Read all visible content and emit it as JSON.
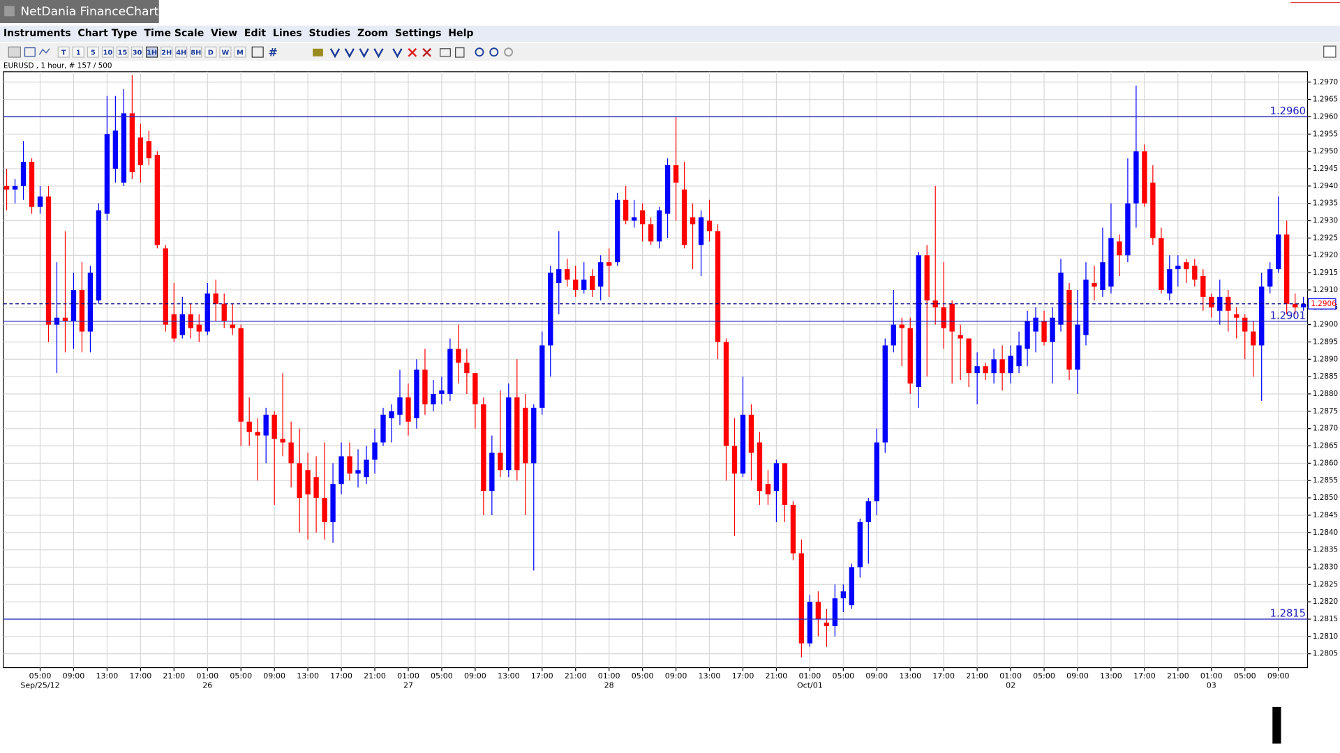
{
  "window": {
    "title": "NetDania FinanceChart"
  },
  "menu": [
    "Instruments",
    "Chart Type",
    "Time Scale",
    "View",
    "Edit",
    "Lines",
    "Studies",
    "Zoom",
    "Settings",
    "Help"
  ],
  "toolbar": [
    "T",
    "1",
    "5",
    "10",
    "15",
    "30",
    "1H",
    "2H",
    "4H",
    "8H",
    "D",
    "W",
    "M"
  ],
  "chart_data": {
    "type": "candlestick",
    "subtitle": "EURUSD , 1 hour, # 157 / 500",
    "up_color": "#0000ff",
    "down_color": "#ff0000",
    "grid": true,
    "level_color": "#2020c0",
    "categories": [
      null,
      null,
      null,
      null,
      "05:00",
      null,
      null,
      null,
      "09:00",
      null,
      null,
      null,
      "13:00",
      null,
      null,
      null,
      "17:00",
      null,
      null,
      null,
      "21:00",
      null,
      null,
      null,
      "01:00",
      null,
      null,
      null,
      "05:00",
      null,
      null,
      null,
      "09:00",
      null,
      null,
      null,
      "13:00",
      null,
      null,
      null,
      "17:00",
      null,
      null,
      null,
      "21:00",
      null,
      null,
      null,
      "01:00",
      null,
      null,
      null,
      "05:00",
      null,
      null,
      null,
      "09:00",
      null,
      null,
      null,
      "13:00",
      null,
      null,
      null,
      "17:00",
      null,
      null,
      null,
      "21:00",
      null,
      null,
      null,
      "01:00",
      null,
      null,
      null,
      "05:00",
      null,
      null,
      null,
      "09:00",
      null,
      null,
      null,
      "13:00",
      null,
      null,
      null,
      "17:00",
      null,
      null,
      null,
      "21:00",
      null,
      null,
      null,
      "01:00",
      null,
      null,
      null,
      "05:00",
      null,
      null,
      null,
      "09:00",
      null,
      null,
      null,
      "13:00",
      null,
      null,
      null,
      "17:00",
      null,
      null,
      null,
      "21:00",
      null,
      null,
      null,
      "01:00",
      null,
      null,
      null,
      "05:00",
      null,
      null,
      null,
      "09:00",
      null,
      null,
      null,
      "13:00",
      null,
      null,
      null,
      "17:00",
      null,
      null,
      null,
      "21:00",
      null,
      null,
      null,
      "01:00",
      null,
      null,
      null,
      "05:00",
      null,
      null,
      null,
      "09:00",
      null,
      null,
      null
    ],
    "dates": [
      null,
      null,
      null,
      null,
      "Sep/25/12",
      null,
      null,
      null,
      null,
      null,
      null,
      null,
      null,
      null,
      null,
      null,
      null,
      null,
      null,
      null,
      null,
      null,
      null,
      null,
      "26",
      null,
      null,
      null,
      null,
      null,
      null,
      null,
      null,
      null,
      null,
      null,
      null,
      null,
      null,
      null,
      null,
      null,
      null,
      null,
      null,
      null,
      null,
      null,
      "27",
      null,
      null,
      null,
      null,
      null,
      null,
      null,
      null,
      null,
      null,
      null,
      null,
      null,
      null,
      null,
      null,
      null,
      null,
      null,
      null,
      null,
      null,
      null,
      "28",
      null,
      null,
      null,
      null,
      null,
      null,
      null,
      null,
      null,
      null,
      null,
      null,
      null,
      null,
      null,
      null,
      null,
      null,
      null,
      null,
      null,
      null,
      null,
      "Oct/01",
      null,
      null,
      null,
      null,
      null,
      null,
      null,
      null,
      null,
      null,
      null,
      null,
      null,
      null,
      null,
      null,
      null,
      null,
      null,
      null,
      null,
      null,
      null,
      "02",
      null,
      null,
      null,
      null,
      null,
      null,
      null,
      null,
      null,
      null,
      null,
      null,
      null,
      null,
      null,
      null,
      null,
      null,
      null,
      null,
      null,
      null,
      null,
      "03",
      null,
      null,
      null,
      null,
      null,
      null,
      null,
      null,
      null,
      null,
      null
    ],
    "open": [
      1.294,
      1.2939,
      1.294,
      1.2947,
      1.2934,
      1.2937,
      1.29,
      1.2902,
      1.2901,
      1.291,
      1.2898,
      1.2907,
      1.2932,
      1.2945,
      1.2941,
      1.2961,
      1.2954,
      1.2953,
      1.2949,
      1.2922,
      1.2903,
      1.2897,
      1.2903,
      1.29,
      1.2898,
      1.2909,
      1.2906,
      1.29,
      1.2899,
      1.2872,
      1.2869,
      1.2868,
      1.2874,
      1.2867,
      1.2866,
      1.286,
      1.2858,
      1.2856,
      1.285,
      1.2843,
      1.2854,
      1.2862,
      1.2857,
      1.2856,
      1.2861,
      1.2866,
      1.2873,
      1.2874,
      1.2879,
      1.2873,
      1.2887,
      1.2877,
      1.288,
      1.288,
      1.2893,
      1.2889,
      1.2886,
      1.2877,
      1.2852,
      1.2863,
      1.2858,
      1.2879,
      1.2876,
      1.286,
      1.2876,
      1.2894,
      1.2912,
      1.2916,
      1.2913,
      1.291,
      1.2914,
      1.2911,
      1.2918,
      1.2918,
      1.2936,
      1.293,
      1.2933,
      1.2929,
      1.2924,
      1.2932,
      1.2946,
      1.2939,
      1.2931,
      1.2923,
      1.293,
      1.2927,
      1.2895,
      1.2865,
      1.2857,
      1.2874,
      1.2866,
      1.2854,
      1.2852,
      1.286,
      1.2848,
      1.2834,
      1.2808,
      1.282,
      1.2814,
      1.2813,
      1.2821,
      1.2819,
      1.283,
      1.2843,
      1.2849,
      1.2866,
      1.2894,
      1.29,
      1.2899,
      1.2882,
      1.292,
      1.2907,
      1.2905,
      1.2906,
      1.2897,
      1.2896,
      1.2886,
      1.2888,
      1.2886,
      1.289,
      1.2886,
      1.2888,
      1.2893,
      1.2898,
      1.2901,
      1.2895,
      1.29,
      1.291,
      1.2887,
      1.2897,
      1.2912,
      1.291,
      1.2911,
      1.2924,
      1.292,
      1.2935,
      1.295,
      1.2941,
      1.2925,
      1.2909,
      1.2916,
      1.2918,
      1.2917,
      1.2914,
      1.2908,
      1.2904,
      1.2908,
      1.2903,
      1.2902,
      1.2898,
      1.2894,
      1.2911,
      1.2916,
      1.2926,
      1.2906,
      1.2905
    ],
    "high": [
      1.2945,
      1.2942,
      1.2953,
      1.2948,
      1.294,
      1.294,
      1.2918,
      1.2927,
      1.2915,
      1.2918,
      1.2917,
      1.2935,
      1.2966,
      1.2966,
      1.2968,
      1.2972,
      1.2958,
      1.2956,
      1.295,
      1.2923,
      1.2912,
      1.2908,
      1.2906,
      1.2903,
      1.2912,
      1.2913,
      1.2909,
      1.2906,
      1.29,
      1.2879,
      1.2873,
      1.2876,
      1.2875,
      1.2886,
      1.2872,
      1.287,
      1.2863,
      1.2862,
      1.2866,
      1.286,
      1.2866,
      1.2866,
      1.2864,
      1.2865,
      1.287,
      1.2876,
      1.2877,
      1.2887,
      1.2883,
      1.289,
      1.2893,
      1.2884,
      1.2885,
      1.2896,
      1.29,
      1.2893,
      1.2886,
      1.2879,
      1.2868,
      1.2881,
      1.2883,
      1.289,
      1.288,
      1.2877,
      1.2898,
      1.2917,
      1.2927,
      1.2919,
      1.2917,
      1.2918,
      1.2916,
      1.292,
      1.2922,
      1.2938,
      1.294,
      1.2936,
      1.2935,
      1.2931,
      1.2934,
      1.2948,
      1.296,
      1.2947,
      1.2935,
      1.2933,
      1.2936,
      1.2929,
      1.2896,
      1.2873,
      1.2885,
      1.2877,
      1.2869,
      1.2858,
      1.2861,
      1.286,
      1.2849,
      1.2838,
      1.2822,
      1.2823,
      1.2818,
      1.2825,
      1.2825,
      1.2831,
      1.2844,
      1.285,
      1.287,
      1.2896,
      1.291,
      1.2902,
      1.2902,
      1.2921,
      1.2923,
      1.294,
      1.2918,
      1.2907,
      1.29,
      1.2896,
      1.2892,
      1.2889,
      1.2893,
      1.2894,
      1.2894,
      1.2898,
      1.2904,
      1.2905,
      1.2904,
      1.2905,
      1.2919,
      1.2912,
      1.291,
      1.2918,
      1.2917,
      1.2928,
      1.2935,
      1.2926,
      1.2948,
      1.2969,
      1.2952,
      1.2946,
      1.2928,
      1.292,
      1.292,
      1.2919,
      1.2919,
      1.2916,
      1.2909,
      1.2913,
      1.291,
      1.2905,
      1.2903,
      1.2901,
      1.2915,
      1.2918,
      1.2937,
      1.293,
      1.2909,
      1.2908
    ],
    "low": [
      1.2933,
      1.2935,
      1.2936,
      1.2932,
      1.2932,
      1.2895,
      1.2886,
      1.2892,
      1.2893,
      1.2892,
      1.2892,
      1.2906,
      1.293,
      1.2941,
      1.294,
      1.2942,
      1.2941,
      1.2946,
      1.2922,
      1.2898,
      1.2895,
      1.2896,
      1.2896,
      1.2895,
      1.2897,
      1.2901,
      1.2899,
      1.2897,
      1.2865,
      1.2865,
      1.2855,
      1.286,
      1.2848,
      1.2862,
      1.2853,
      1.284,
      1.2838,
      1.284,
      1.2838,
      1.2837,
      1.2851,
      1.2855,
      1.2853,
      1.2854,
      1.2857,
      1.2865,
      1.2866,
      1.2871,
      1.2868,
      1.287,
      1.2874,
      1.2875,
      1.2877,
      1.2878,
      1.2883,
      1.288,
      1.287,
      1.2845,
      1.2845,
      1.2856,
      1.2856,
      1.2855,
      1.2845,
      1.2829,
      1.2874,
      1.2885,
      1.2903,
      1.2911,
      1.2908,
      1.2909,
      1.2908,
      1.2907,
      1.2908,
      1.2917,
      1.2929,
      1.2928,
      1.2924,
      1.2923,
      1.2922,
      1.2925,
      1.293,
      1.2922,
      1.2916,
      1.2914,
      1.2924,
      1.289,
      1.2855,
      1.2839,
      1.2856,
      1.2855,
      1.2848,
      1.2848,
      1.2843,
      1.2843,
      1.2832,
      1.2804,
      1.2807,
      1.281,
      1.2807,
      1.281,
      1.2817,
      1.2818,
      1.2827,
      1.2831,
      1.2845,
      1.2863,
      1.2892,
      1.2888,
      1.288,
      1.2876,
      1.2885,
      1.29,
      1.2893,
      1.2883,
      1.2884,
      1.2882,
      1.2877,
      1.2884,
      1.2883,
      1.2881,
      1.2883,
      1.2886,
      1.2888,
      1.2892,
      1.2894,
      1.2883,
      1.2898,
      1.2884,
      1.288,
      1.2894,
      1.2907,
      1.2908,
      1.2909,
      1.2914,
      1.2918,
      1.2928,
      1.2934,
      1.2923,
      1.2909,
      1.2907,
      1.2911,
      1.2912,
      1.2911,
      1.2904,
      1.2902,
      1.29,
      1.2898,
      1.2896,
      1.289,
      1.2885,
      1.2878,
      1.2909,
      1.2915,
      1.2903,
      1.2903,
      1.2904
    ],
    "close": [
      1.2939,
      1.294,
      1.2947,
      1.2934,
      1.2937,
      1.29,
      1.2902,
      1.2901,
      1.291,
      1.2898,
      1.2915,
      1.2933,
      1.2955,
      1.2956,
      1.2961,
      1.2944,
      1.2946,
      1.2948,
      1.2923,
      1.29,
      1.2896,
      1.2903,
      1.2899,
      1.2898,
      1.2909,
      1.2906,
      1.2901,
      1.2899,
      1.2872,
      1.2869,
      1.2868,
      1.2874,
      1.2867,
      1.2866,
      1.286,
      1.285,
      1.2851,
      1.285,
      1.2843,
      1.2854,
      1.2862,
      1.2857,
      1.2858,
      1.2861,
      1.2866,
      1.2874,
      1.2875,
      1.2879,
      1.2872,
      1.2887,
      1.2877,
      1.288,
      1.2881,
      1.2893,
      1.2889,
      1.2886,
      1.2877,
      1.2852,
      1.2863,
      1.2858,
      1.2879,
      1.2858,
      1.286,
      1.2876,
      1.2894,
      1.2915,
      1.2916,
      1.2913,
      1.291,
      1.2913,
      1.291,
      1.2918,
      1.2917,
      1.2936,
      1.293,
      1.2931,
      1.2929,
      1.2924,
      1.2933,
      1.2946,
      1.2941,
      1.2923,
      1.2929,
      1.2931,
      1.2927,
      1.2895,
      1.2865,
      1.2857,
      1.2874,
      1.2863,
      1.2852,
      1.2851,
      1.286,
      1.2848,
      1.2834,
      1.2808,
      1.282,
      1.2815,
      1.2813,
      1.2821,
      1.2823,
      1.283,
      1.2843,
      1.2849,
      1.2866,
      1.2894,
      1.29,
      1.2899,
      1.2883,
      1.292,
      1.2907,
      1.2905,
      1.2899,
      1.2898,
      1.2896,
      1.2886,
      1.2888,
      1.2886,
      1.289,
      1.2886,
      1.2891,
      1.2894,
      1.2901,
      1.2902,
      1.2895,
      1.2902,
      1.2915,
      1.2887,
      1.29,
      1.2913,
      1.2911,
      1.2918,
      1.2925,
      1.292,
      1.2935,
      1.295,
      1.2935,
      1.2925,
      1.291,
      1.2916,
      1.2917,
      1.2916,
      1.2913,
      1.2908,
      1.2905,
      1.2908,
      1.2904,
      1.2902,
      1.2898,
      1.2894,
      1.2911,
      1.2916,
      1.2926,
      1.2906,
      1.2905,
      1.2906
    ],
    "ylim": [
      1.2801,
      1.2973
    ],
    "yticks": [
      {
        "value": 1.2805,
        "label": "1.2805"
      },
      {
        "value": 1.281,
        "label": "1.2810"
      },
      {
        "value": 1.2815,
        "label": "1.2815"
      },
      {
        "value": 1.282,
        "label": "1.2820"
      },
      {
        "value": 1.2825,
        "label": "1.2825"
      },
      {
        "value": 1.283,
        "label": "1.2830"
      },
      {
        "value": 1.2835,
        "label": "1.2835"
      },
      {
        "value": 1.284,
        "label": "1.2840"
      },
      {
        "value": 1.2845,
        "label": "1.2845"
      },
      {
        "value": 1.285,
        "label": "1.2850"
      },
      {
        "value": 1.2855,
        "label": "1.2855"
      },
      {
        "value": 1.286,
        "label": "1.2860"
      },
      {
        "value": 1.2865,
        "label": "1.2865"
      },
      {
        "value": 1.287,
        "label": "1.2870"
      },
      {
        "value": 1.2875,
        "label": "1.2875"
      },
      {
        "value": 1.288,
        "label": "1.2880"
      },
      {
        "value": 1.2885,
        "label": "1.2885"
      },
      {
        "value": 1.289,
        "label": "1.2890"
      },
      {
        "value": 1.2895,
        "label": "1.2895"
      },
      {
        "value": 1.29,
        "label": "1.2900"
      },
      {
        "value": 1.2905,
        "label": "1.2905"
      },
      {
        "value": 1.291,
        "label": "1.2910"
      },
      {
        "value": 1.2915,
        "label": "1.2915"
      },
      {
        "value": 1.292,
        "label": "1.2920"
      },
      {
        "value": 1.2925,
        "label": "1.2925"
      },
      {
        "value": 1.293,
        "label": "1.2930"
      },
      {
        "value": 1.2935,
        "label": "1.2935"
      },
      {
        "value": 1.294,
        "label": "1.2940"
      },
      {
        "value": 1.2945,
        "label": "1.2945"
      },
      {
        "value": 1.295,
        "label": "1.2950"
      },
      {
        "value": 1.2955,
        "label": "1.2955"
      },
      {
        "value": 1.296,
        "label": "1.2960"
      },
      {
        "value": 1.2965,
        "label": "1.2965"
      },
      {
        "value": 1.297,
        "label": "1.2970"
      }
    ],
    "levels": [
      {
        "value": 1.296,
        "label": "1.2960"
      },
      {
        "value": 1.2901,
        "label": "1.2901"
      },
      {
        "value": 1.2815,
        "label": "1.2815"
      }
    ],
    "last_price": 1.2906
  }
}
